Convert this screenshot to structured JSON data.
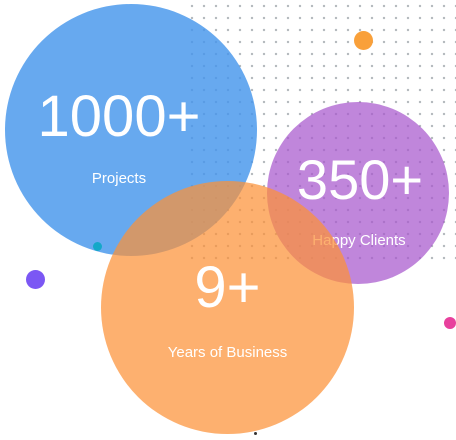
{
  "stats": [
    {
      "number": "1000+",
      "label": "Projects"
    },
    {
      "number": "350+",
      "label": "Happy Clients"
    },
    {
      "number": "9+",
      "label": "Years of Business"
    }
  ],
  "colors": {
    "projects_circle": "#4696eb",
    "clients_circle": "#a858cd",
    "years_circle": "#fc9137",
    "accent_orange": "#f9a03a",
    "accent_purple": "#7b57f4",
    "accent_teal": "#14a8c8",
    "accent_pink": "#e8409d"
  }
}
